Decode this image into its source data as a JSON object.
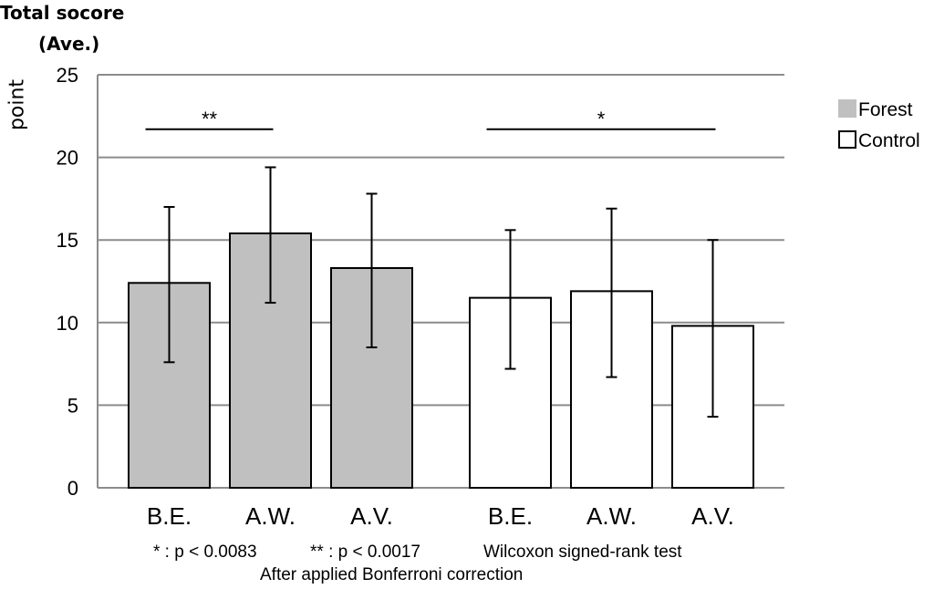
{
  "chart_data": {
    "type": "bar",
    "title_lines": [
      "Total socore",
      "(Ave.)"
    ],
    "ylabel": "point",
    "xlabel": "",
    "ylim": [
      0,
      25
    ],
    "yticks": [
      0,
      5,
      10,
      15,
      20,
      25
    ],
    "grid": true,
    "legend_position": "top-right",
    "series": [
      {
        "name": "Forest",
        "color": "#c0c0c0",
        "categories": [
          "B.E.",
          "A.W.",
          "A.V."
        ],
        "values": [
          12.4,
          15.4,
          13.3
        ],
        "error_low": [
          7.6,
          11.2,
          8.5
        ],
        "error_high": [
          17.0,
          19.4,
          17.8
        ]
      },
      {
        "name": "Control",
        "color": "#ffffff",
        "categories": [
          "B.E.",
          "A.W.",
          "A.V."
        ],
        "values": [
          11.5,
          11.9,
          9.8
        ],
        "error_low": [
          7.2,
          6.7,
          4.3
        ],
        "error_high": [
          15.6,
          16.9,
          15.0
        ]
      }
    ],
    "significance": [
      {
        "series": "Forest",
        "from": 0,
        "to": 1,
        "y": 21.7,
        "label": "**"
      },
      {
        "series": "Control",
        "from": 0,
        "to": 2,
        "y": 21.7,
        "label": "*"
      }
    ],
    "footnote_line1": {
      "single": "* :  p < 0.0083",
      "double": "** :  p < 0.0017",
      "test": "Wilcoxon signed-rank test"
    },
    "footnote_line2": "After applied Bonferroni correction"
  }
}
